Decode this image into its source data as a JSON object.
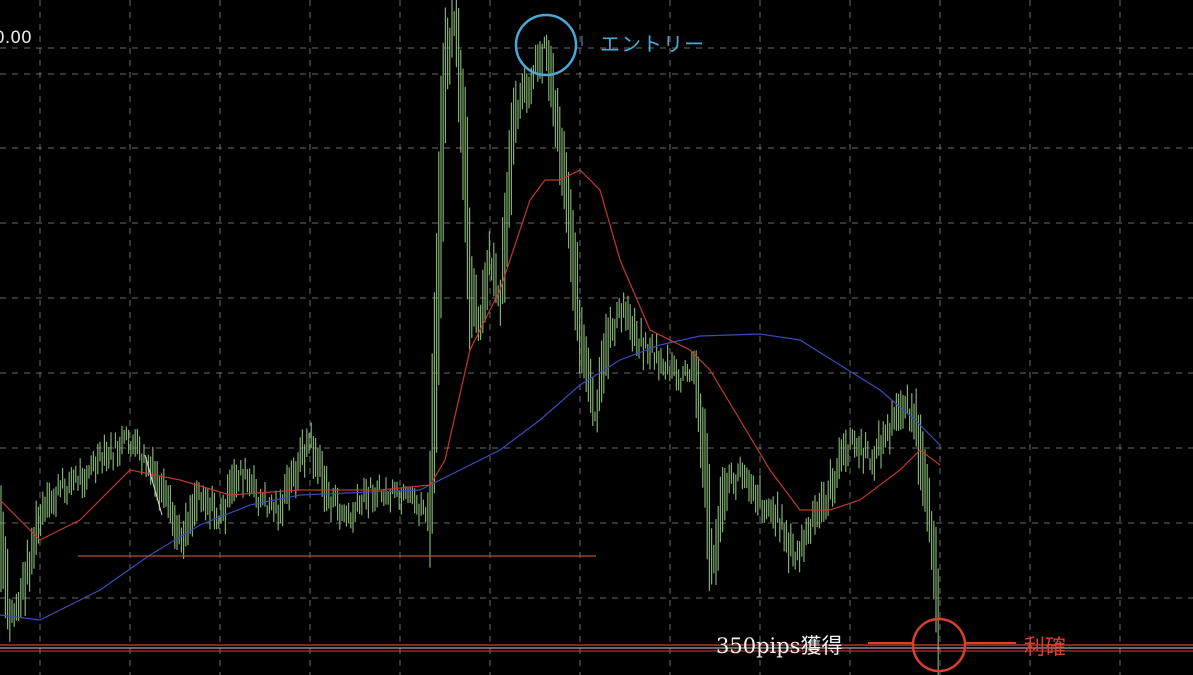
{
  "chart": {
    "price_label": "0.00",
    "colors": {
      "background": "#000000",
      "candles": "#7fae6e",
      "ma_fast": "#c0392b",
      "ma_slow": "#3b4bb8",
      "grid": "#6a6a6a",
      "entry": "#4aa8d8",
      "take_profit": "#d8402e"
    }
  },
  "annotations": {
    "entry_label": "エントリー",
    "pips_label": "350pips獲得",
    "take_profit_label": "利確"
  }
}
